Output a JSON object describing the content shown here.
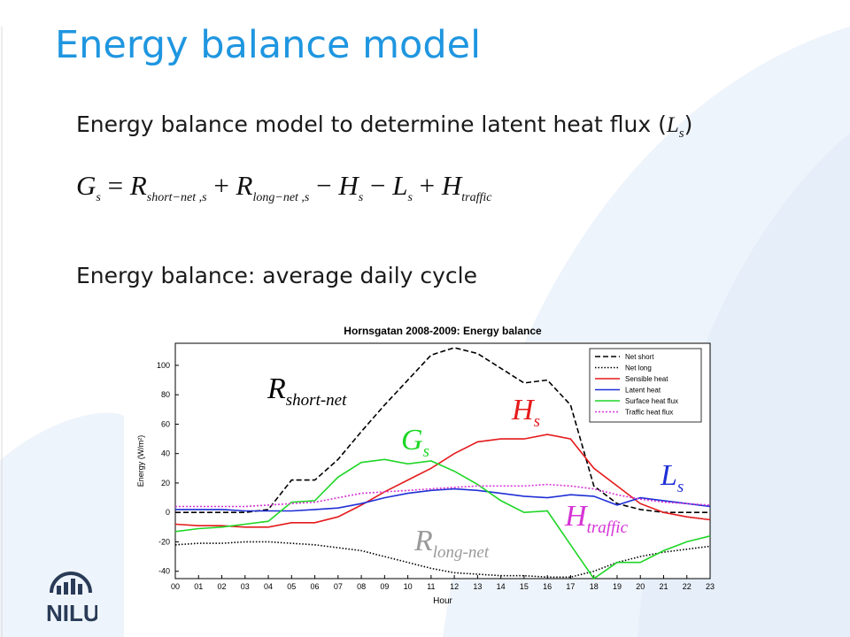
{
  "slide": {
    "title": "Energy balance model",
    "bullet1_prefix": "Energy balance model to determine latent heat flux (",
    "bullet1_var": "L",
    "bullet1_sub": "s",
    "bullet1_suffix": ")",
    "bullet2": "Energy balance: average daily cycle"
  },
  "equation": {
    "lhs": "G",
    "lhs_sub": "s",
    "eq": "=",
    "t1": "R",
    "t1_sub": "short−net ,s",
    "t2": "R",
    "t2_sub": "long−net ,s",
    "t3": "H",
    "t3_sub": "s",
    "t4": "L",
    "t4_sub": "s",
    "t5": "H",
    "t5_sub": "traffic"
  },
  "logo": {
    "text": "NILU"
  },
  "colors": {
    "title": "#1f96e0",
    "swoosh": "#e8f1fa",
    "logo": "#2a3b57"
  },
  "chart_data": {
    "type": "line",
    "title": "Hornsgatan 2008-2009: Energy balance",
    "xlabel": "Hour",
    "ylabel": "Energy (W/m²)",
    "ylim": [
      -45,
      115
    ],
    "yticks": [
      -40,
      -20,
      0,
      20,
      40,
      60,
      80,
      100
    ],
    "categories": [
      "00",
      "01",
      "02",
      "03",
      "04",
      "05",
      "06",
      "07",
      "08",
      "09",
      "10",
      "11",
      "12",
      "13",
      "14",
      "15",
      "16",
      "17",
      "18",
      "19",
      "20",
      "21",
      "22",
      "23"
    ],
    "legend_position": "top-right",
    "series": [
      {
        "name": "Net short",
        "color": "#000000",
        "dash": "6,3",
        "values": [
          0,
          0,
          0,
          0,
          2,
          22,
          22,
          36,
          55,
          73,
          90,
          107,
          112,
          108,
          98,
          88,
          90,
          73,
          18,
          6,
          2,
          0,
          0,
          0
        ]
      },
      {
        "name": "Net long",
        "color": "#000000",
        "dash": "1.5,2",
        "values": [
          -22,
          -21,
          -21,
          -20,
          -20,
          -21,
          -22,
          -24,
          -26,
          -30,
          -34,
          -38,
          -41,
          -42,
          -43,
          -43,
          -44,
          -44,
          -40,
          -34,
          -30,
          -27,
          -25,
          -23
        ]
      },
      {
        "name": "Sensible heat",
        "color": "#e41a1c",
        "dash": "",
        "values": [
          -8,
          -9,
          -9,
          -10,
          -10,
          -7,
          -7,
          -3,
          5,
          14,
          22,
          30,
          40,
          48,
          50,
          50,
          53,
          50,
          30,
          18,
          6,
          0,
          -3,
          -5
        ]
      },
      {
        "name": "Latent heat",
        "color": "#1f2fd6",
        "dash": "",
        "values": [
          2,
          2,
          2,
          1,
          1,
          1,
          2,
          3,
          6,
          10,
          13,
          15,
          16,
          15,
          13,
          11,
          10,
          12,
          11,
          5,
          10,
          8,
          6,
          4
        ]
      },
      {
        "name": "Surface heat flux",
        "color": "#1fd626",
        "dash": "",
        "values": [
          -13,
          -11,
          -10,
          -8,
          -6,
          7,
          8,
          24,
          34,
          36,
          33,
          35,
          28,
          19,
          8,
          0,
          1,
          -22,
          -45,
          -34,
          -34,
          -26,
          -20,
          -16
        ]
      },
      {
        "name": "Traffic heat flux",
        "color": "#d633d6",
        "dash": "2,2",
        "values": [
          4,
          4,
          4,
          4,
          5,
          6,
          7,
          10,
          13,
          14,
          15,
          16,
          17,
          18,
          18,
          18,
          19,
          18,
          16,
          12,
          9,
          7,
          6,
          5
        ]
      }
    ],
    "annotations": [
      {
        "text": "R",
        "sub": "short-net",
        "color": "#000000"
      },
      {
        "text": "H",
        "sub": "s",
        "color": "#e41a1c"
      },
      {
        "text": "G",
        "sub": "s",
        "color": "#1fd626"
      },
      {
        "text": "L",
        "sub": "s",
        "color": "#1f2fd6"
      },
      {
        "text": "H",
        "sub": "traffic",
        "color": "#d633d6"
      },
      {
        "text": "R",
        "sub": "long-net",
        "color": "#9a9a9a"
      }
    ]
  }
}
